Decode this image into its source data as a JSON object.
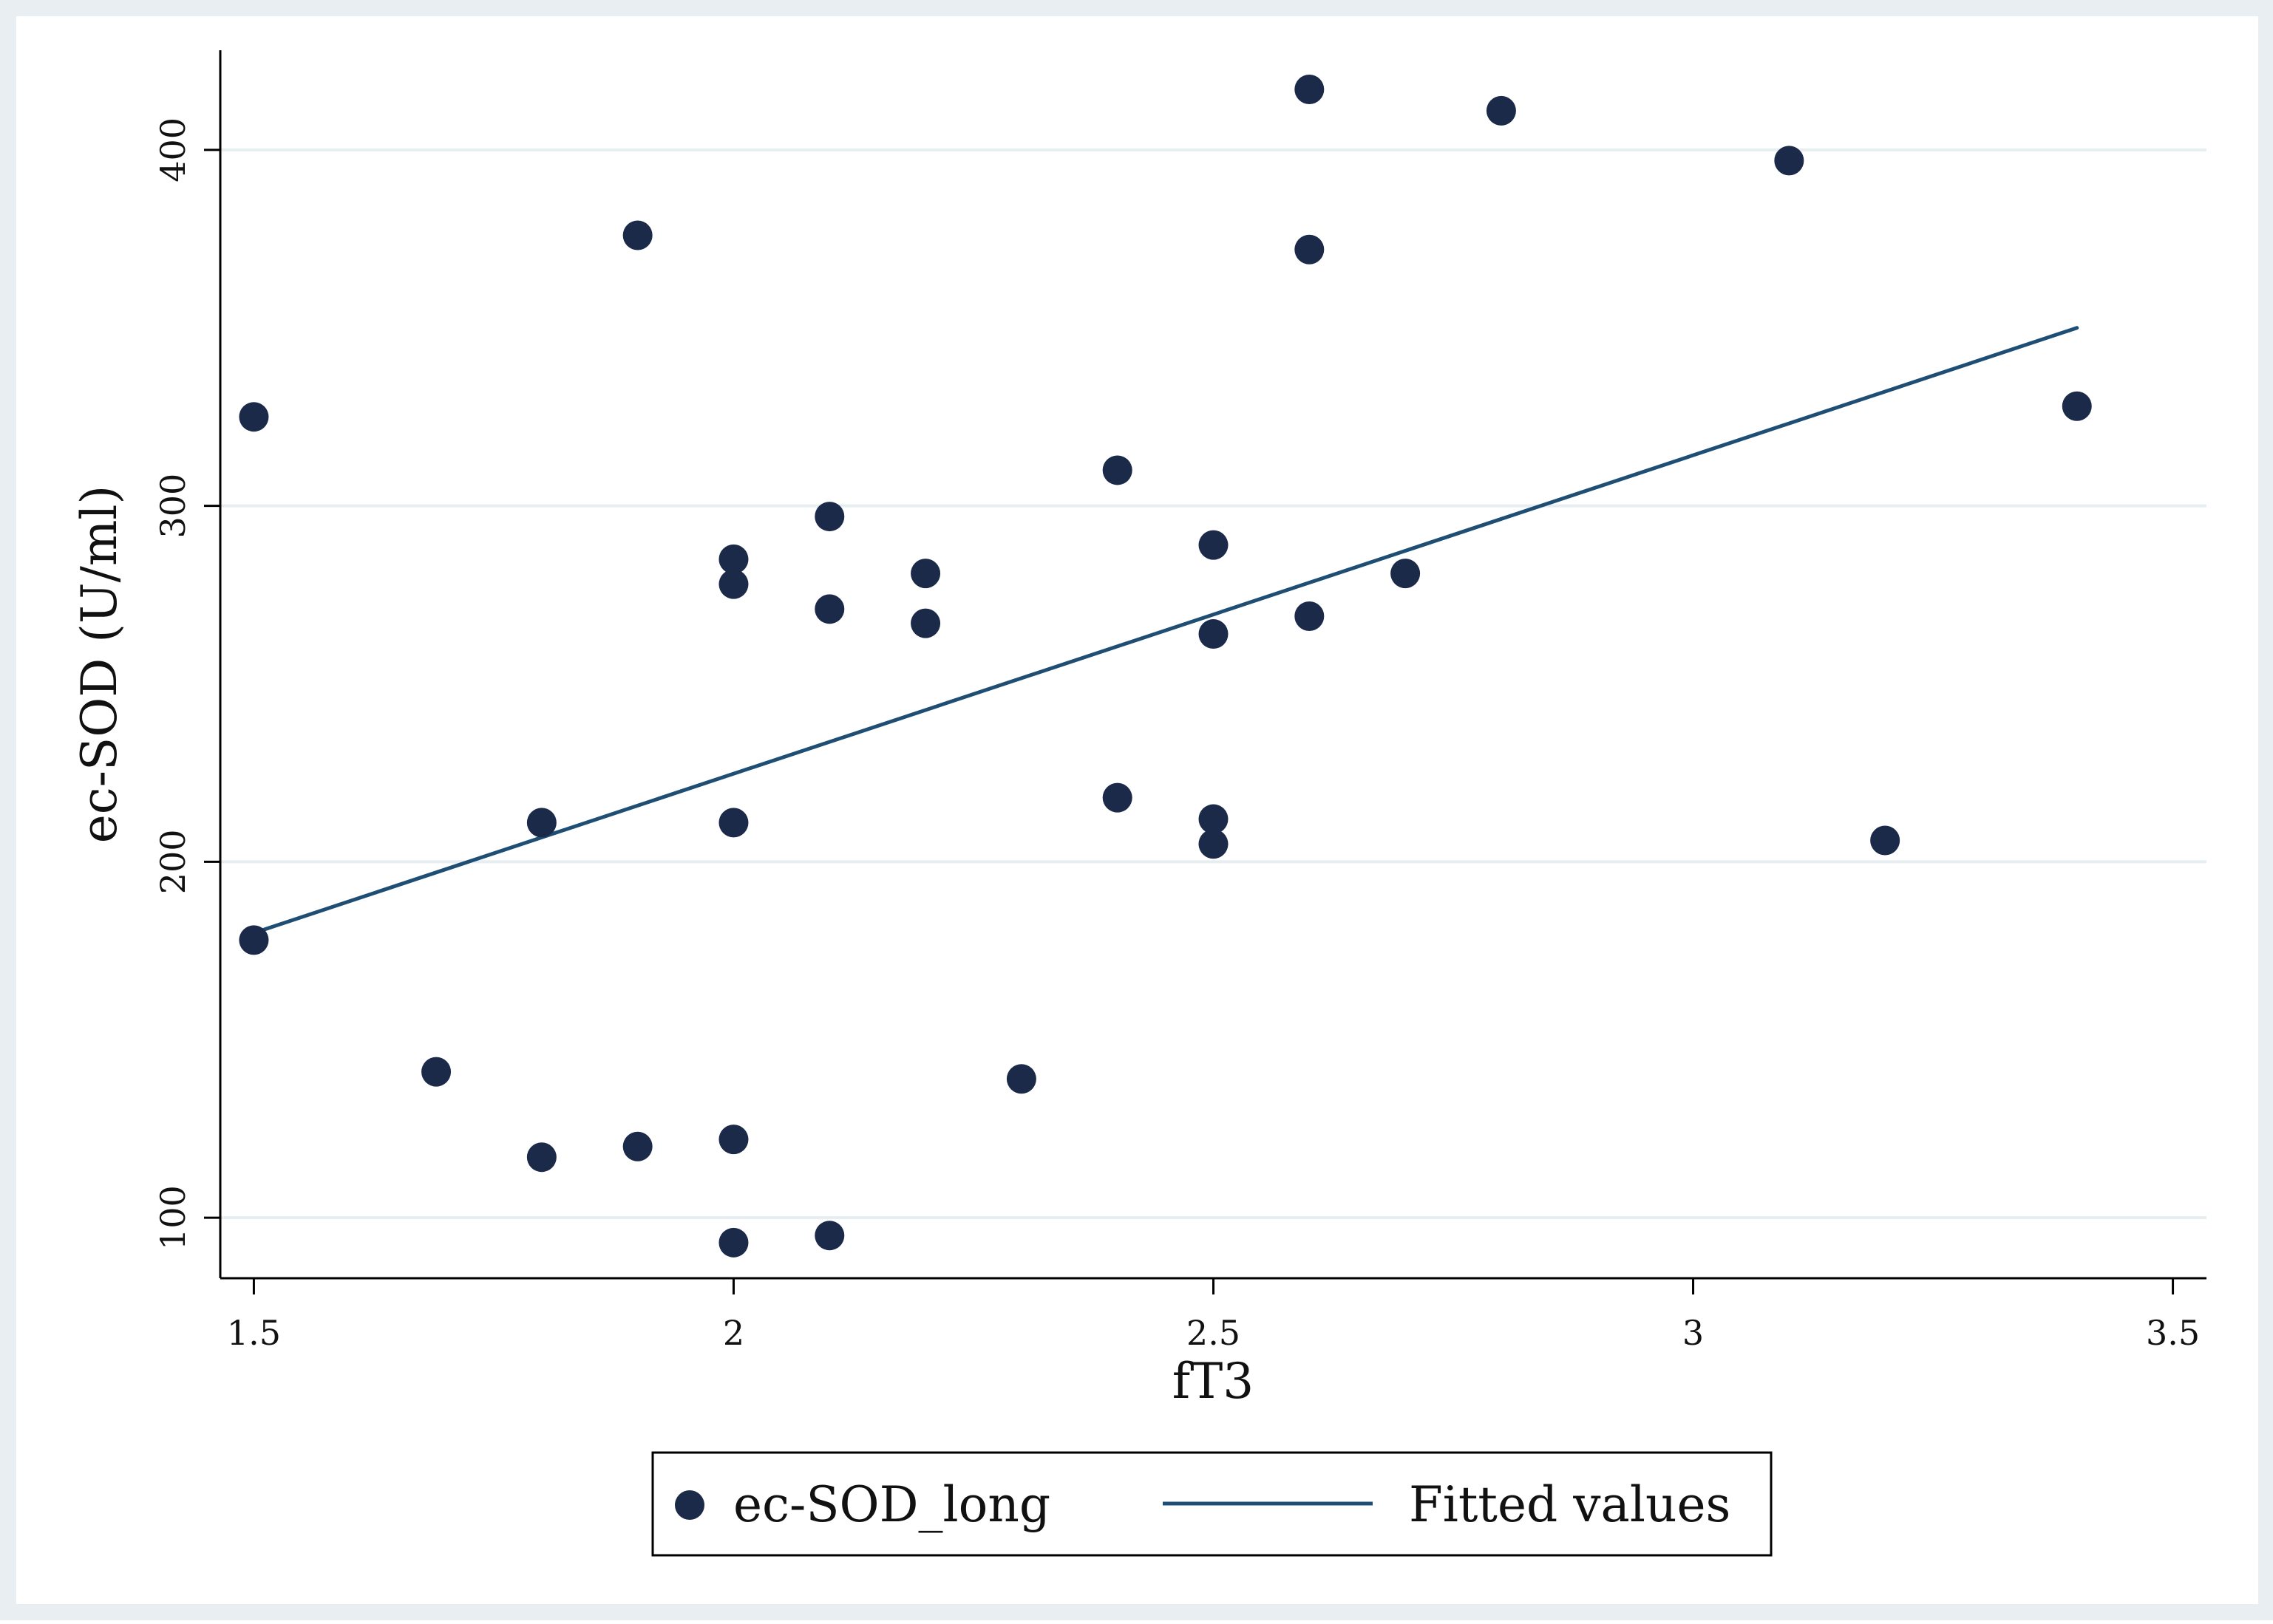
{
  "colors": {
    "outer_background": "#e9eef2",
    "plot_background": "#ffffff",
    "grid": "#e6eef2",
    "axis": "#000000",
    "marker": "#1c2a4a",
    "fit_line": "#1f4e74",
    "text": "#111111"
  },
  "chart_data": {
    "type": "scatter",
    "title": "",
    "xlabel": "fT3",
    "ylabel": "ec-SOD (U/ml)",
    "xlim": [
      1.465,
      3.535
    ],
    "ylim": [
      83,
      428
    ],
    "xticks": [
      1.5,
      2,
      2.5,
      3,
      3.5
    ],
    "xtick_labels": [
      "1.5",
      "2",
      "2.5",
      "3",
      "3.5"
    ],
    "yticks": [
      100,
      200,
      300,
      400
    ],
    "ytick_labels": [
      "100",
      "200",
      "300",
      "400"
    ],
    "grid": "horizontal",
    "legend_position": "bottom",
    "series": [
      {
        "name": "ec-SOD_long",
        "kind": "scatter",
        "points": [
          {
            "x": 1.5,
            "y": 325
          },
          {
            "x": 1.5,
            "y": 178
          },
          {
            "x": 1.69,
            "y": 141
          },
          {
            "x": 1.8,
            "y": 211
          },
          {
            "x": 1.8,
            "y": 117
          },
          {
            "x": 1.9,
            "y": 376
          },
          {
            "x": 1.9,
            "y": 120
          },
          {
            "x": 2.0,
            "y": 285
          },
          {
            "x": 2.0,
            "y": 278
          },
          {
            "x": 2.0,
            "y": 211
          },
          {
            "x": 2.0,
            "y": 122
          },
          {
            "x": 2.0,
            "y": 93
          },
          {
            "x": 2.1,
            "y": 297
          },
          {
            "x": 2.1,
            "y": 271
          },
          {
            "x": 2.1,
            "y": 95
          },
          {
            "x": 2.2,
            "y": 281
          },
          {
            "x": 2.2,
            "y": 267
          },
          {
            "x": 2.3,
            "y": 139
          },
          {
            "x": 2.4,
            "y": 310
          },
          {
            "x": 2.4,
            "y": 218
          },
          {
            "x": 2.5,
            "y": 289
          },
          {
            "x": 2.5,
            "y": 264
          },
          {
            "x": 2.5,
            "y": 212
          },
          {
            "x": 2.5,
            "y": 205
          },
          {
            "x": 2.6,
            "y": 417
          },
          {
            "x": 2.6,
            "y": 372
          },
          {
            "x": 2.6,
            "y": 269
          },
          {
            "x": 2.7,
            "y": 281
          },
          {
            "x": 2.8,
            "y": 411
          },
          {
            "x": 3.1,
            "y": 397
          },
          {
            "x": 3.2,
            "y": 206
          },
          {
            "x": 3.4,
            "y": 328
          }
        ]
      },
      {
        "name": "Fitted values",
        "kind": "line",
        "points": [
          {
            "x": 1.5,
            "y": 180
          },
          {
            "x": 3.4,
            "y": 350
          }
        ]
      }
    ]
  }
}
